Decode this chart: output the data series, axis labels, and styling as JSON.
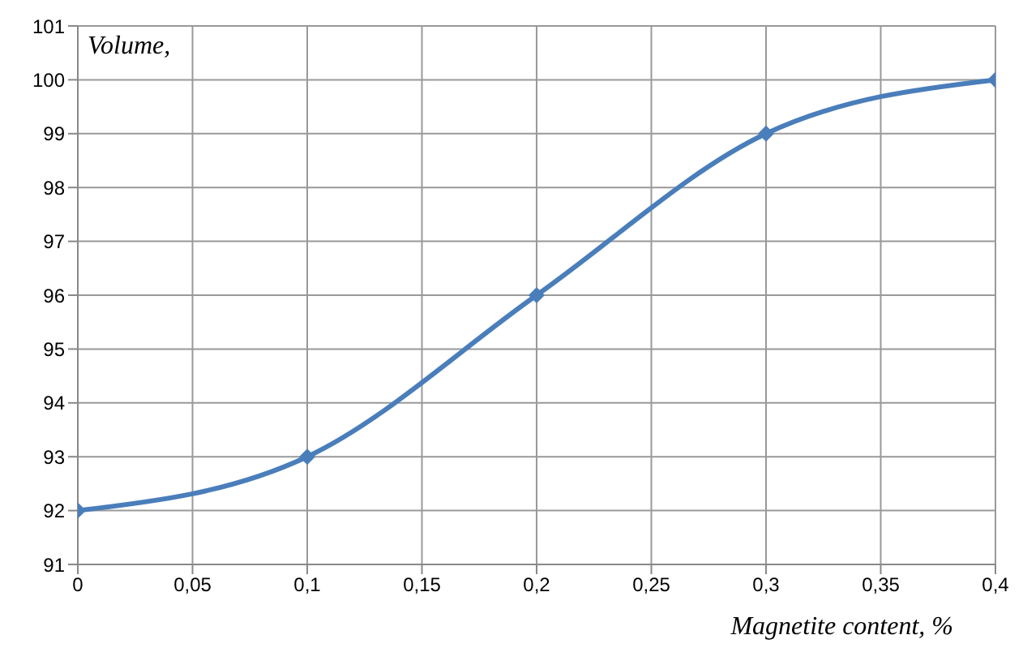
{
  "chart_data": {
    "type": "line",
    "xlabel": "Magnetite content, %",
    "ylabel": "Volume,",
    "x": [
      0,
      0.1,
      0.2,
      0.3,
      0.4
    ],
    "series": [
      {
        "color": "#4a7ebb",
        "values": [
          92,
          93,
          96,
          99,
          100
        ]
      }
    ],
    "xlim": [
      0,
      0.4
    ],
    "xticks": [
      0,
      {
        "value": 0.05,
        "label": "0,05"
      },
      {
        "value": 0.1,
        "label": "0,1"
      },
      {
        "value": 0.15,
        "label": "0,15"
      },
      {
        "value": 0.2,
        "label": "0,2"
      },
      {
        "value": 0.25,
        "label": "0,25"
      },
      {
        "value": 0.3,
        "label": "0,3"
      },
      {
        "value": 0.35,
        "label": "0,35"
      },
      {
        "value": 0.4,
        "label": "0,4"
      }
    ],
    "ylim": [
      91,
      101
    ],
    "yticks": [
      91,
      92,
      93,
      94,
      95,
      96,
      97,
      98,
      99,
      100,
      101
    ],
    "grid": true,
    "legend": false,
    "marker": "diamond",
    "line_style": "solid"
  }
}
